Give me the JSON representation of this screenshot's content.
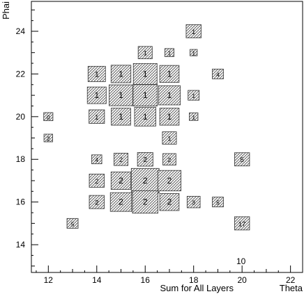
{
  "chart_data": {
    "type": "box-histogram-2d",
    "xlabel": "Sum for All Layers",
    "x_axis_name": "Theta",
    "ylabel": "Phai",
    "corner_label": "10",
    "xlim": [
      11.3,
      22.5
    ],
    "ylim": [
      12.7,
      25.4
    ],
    "x_ticks": [
      12,
      14,
      16,
      18,
      20,
      22
    ],
    "y_ticks": [
      14,
      16,
      18,
      20,
      22,
      24
    ],
    "grid": false,
    "cells": [
      {
        "x": 18,
        "y": 24,
        "value": 1,
        "label": "1",
        "size": 0.62
      },
      {
        "x": 16,
        "y": 23,
        "value": 1,
        "label": "1",
        "size": 0.58
      },
      {
        "x": 17,
        "y": 23,
        "value": 1,
        "label": "1",
        "size": 0.38
      },
      {
        "x": 18,
        "y": 23,
        "value": 1,
        "label": "1",
        "size": 0.3
      },
      {
        "x": 14,
        "y": 22,
        "value": 1,
        "label": "1",
        "size": 0.72
      },
      {
        "x": 15,
        "y": 22,
        "value": 1,
        "label": "1",
        "size": 0.82
      },
      {
        "x": 16,
        "y": 22,
        "value": 1,
        "label": "1",
        "size": 0.98
      },
      {
        "x": 17,
        "y": 22,
        "value": 1,
        "label": "1",
        "size": 0.8
      },
      {
        "x": 19,
        "y": 22,
        "value": 4,
        "label": "4",
        "size": 0.46
      },
      {
        "x": 14,
        "y": 21,
        "value": 1,
        "label": "1",
        "size": 0.78
      },
      {
        "x": 15,
        "y": 21,
        "value": 1,
        "label": "1",
        "size": 0.98
      },
      {
        "x": 16,
        "y": 21,
        "value": 1,
        "label": "1",
        "size": 1.0
      },
      {
        "x": 17,
        "y": 21,
        "value": 1,
        "label": "1",
        "size": 0.9
      },
      {
        "x": 18,
        "y": 21,
        "value": 1,
        "label": "1",
        "size": 0.46
      },
      {
        "x": 12,
        "y": 20,
        "value": 0,
        "label": "0",
        "size": 0.38
      },
      {
        "x": 14,
        "y": 20,
        "value": 1,
        "label": "1",
        "size": 0.64
      },
      {
        "x": 15,
        "y": 20,
        "value": 1,
        "label": "1",
        "size": 0.8
      },
      {
        "x": 16,
        "y": 20,
        "value": 1,
        "label": "1",
        "size": 0.88
      },
      {
        "x": 17,
        "y": 20,
        "value": 1,
        "label": "1",
        "size": 0.8
      },
      {
        "x": 18,
        "y": 20,
        "value": 1,
        "label": "1",
        "size": 0.36
      },
      {
        "x": 12,
        "y": 19,
        "value": 2,
        "label": "2",
        "size": 0.36
      },
      {
        "x": 17,
        "y": 19,
        "value": 1,
        "label": "1",
        "size": 0.58
      },
      {
        "x": 14,
        "y": 18,
        "value": 4,
        "label": "4",
        "size": 0.42
      },
      {
        "x": 15,
        "y": 18,
        "value": 2,
        "label": "2",
        "size": 0.58
      },
      {
        "x": 16,
        "y": 18,
        "value": 2,
        "label": "2",
        "size": 0.64
      },
      {
        "x": 17,
        "y": 18,
        "value": 2,
        "label": "2",
        "size": 0.54
      },
      {
        "x": 20,
        "y": 18,
        "value": 5,
        "label": "5",
        "size": 0.62
      },
      {
        "x": 14,
        "y": 17,
        "value": 2,
        "label": "2",
        "size": 0.62
      },
      {
        "x": 15,
        "y": 17,
        "value": 2,
        "label": "2",
        "size": 0.82
      },
      {
        "x": 16,
        "y": 17,
        "value": 2,
        "label": "2",
        "size": 1.15
      },
      {
        "x": 17,
        "y": 17,
        "value": 2,
        "label": "2",
        "size": 0.96
      },
      {
        "x": 14,
        "y": 16,
        "value": 2,
        "label": "2",
        "size": 0.62
      },
      {
        "x": 15,
        "y": 16,
        "value": 2,
        "label": "2",
        "size": 0.88
      },
      {
        "x": 16,
        "y": 16,
        "value": 2,
        "label": "2",
        "size": 1.05
      },
      {
        "x": 17,
        "y": 16,
        "value": 2,
        "label": "2",
        "size": 0.8
      },
      {
        "x": 18,
        "y": 16,
        "value": 3,
        "label": "3",
        "size": 0.54
      },
      {
        "x": 19,
        "y": 16,
        "value": 5,
        "label": "5",
        "size": 0.46
      },
      {
        "x": 13,
        "y": 15,
        "value": 5,
        "label": "5",
        "size": 0.46
      },
      {
        "x": 20,
        "y": 15,
        "value": 17,
        "label": "17",
        "size": 0.62
      }
    ]
  }
}
